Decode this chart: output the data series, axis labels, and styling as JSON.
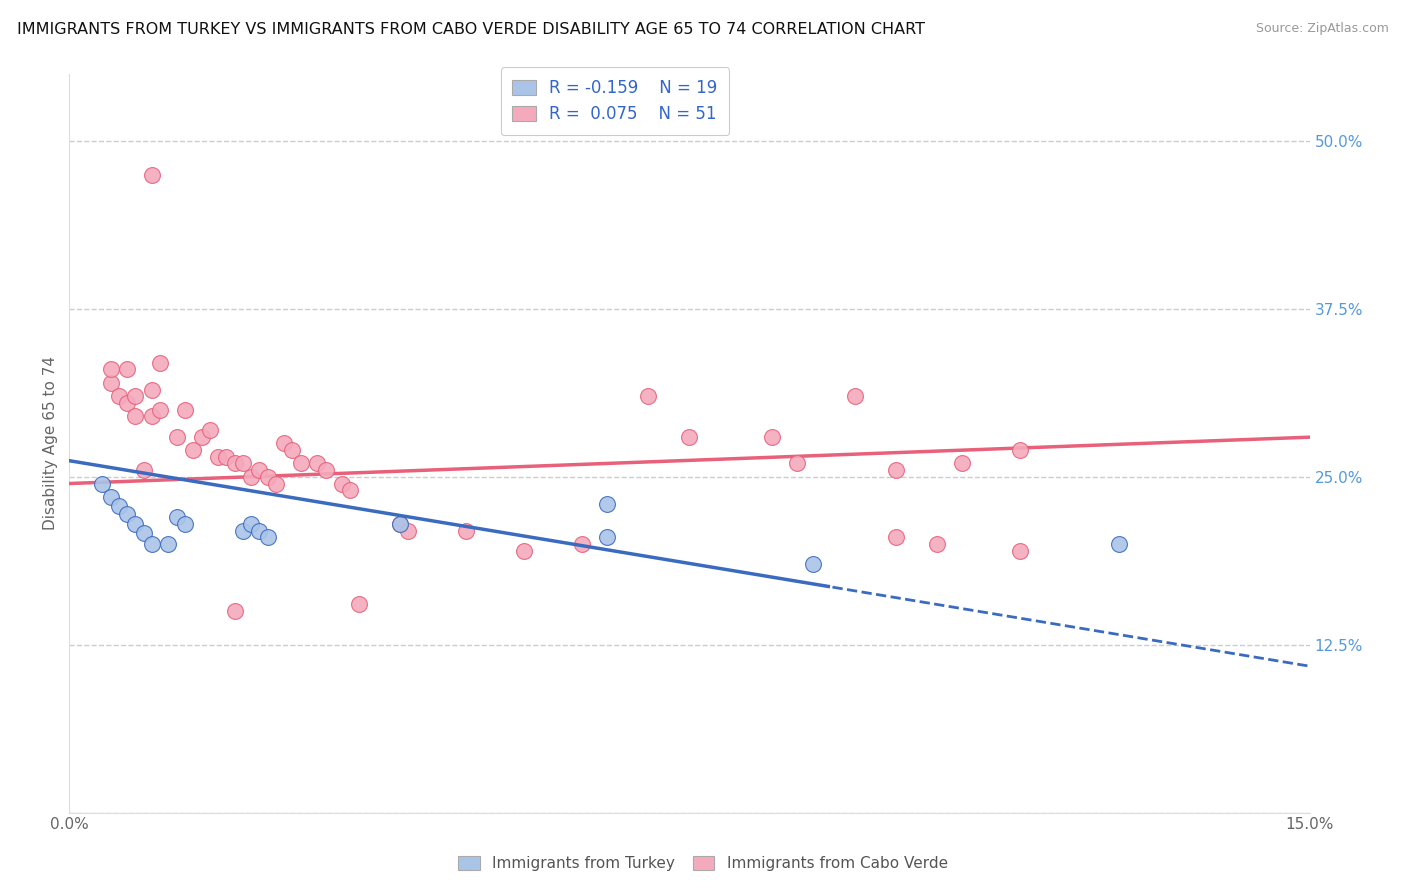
{
  "title": "IMMIGRANTS FROM TURKEY VS IMMIGRANTS FROM CABO VERDE DISABILITY AGE 65 TO 74 CORRELATION CHART",
  "source": "Source: ZipAtlas.com",
  "ylabel": "Disability Age 65 to 74",
  "xlim": [
    0.0,
    0.15
  ],
  "ylim": [
    0.0,
    0.55
  ],
  "xticks": [
    0.0,
    0.03,
    0.06,
    0.09,
    0.12,
    0.15
  ],
  "yticks_right": [
    0.0,
    0.125,
    0.25,
    0.375,
    0.5
  ],
  "color_blue": "#aac4e8",
  "color_pink": "#f4aabc",
  "color_blue_line": "#3a6bbf",
  "color_pink_line": "#e8607a",
  "blue_x": [
    0.004,
    0.005,
    0.006,
    0.007,
    0.008,
    0.009,
    0.01,
    0.012,
    0.013,
    0.014,
    0.021,
    0.022,
    0.023,
    0.024,
    0.04,
    0.065,
    0.065,
    0.09,
    0.127
  ],
  "blue_y": [
    0.245,
    0.235,
    0.228,
    0.222,
    0.215,
    0.208,
    0.2,
    0.2,
    0.22,
    0.215,
    0.21,
    0.215,
    0.21,
    0.205,
    0.215,
    0.23,
    0.205,
    0.185,
    0.2
  ],
  "pink_x": [
    0.005,
    0.005,
    0.006,
    0.007,
    0.007,
    0.008,
    0.008,
    0.009,
    0.01,
    0.01,
    0.011,
    0.011,
    0.013,
    0.014,
    0.015,
    0.016,
    0.017,
    0.018,
    0.019,
    0.02,
    0.021,
    0.022,
    0.023,
    0.024,
    0.025,
    0.026,
    0.027,
    0.028,
    0.03,
    0.031,
    0.033,
    0.034,
    0.04,
    0.041,
    0.048,
    0.055,
    0.062,
    0.07,
    0.075,
    0.085,
    0.088,
    0.095,
    0.1,
    0.108,
    0.115,
    0.1,
    0.105,
    0.115,
    0.035,
    0.02,
    0.01
  ],
  "pink_y": [
    0.32,
    0.33,
    0.31,
    0.305,
    0.33,
    0.295,
    0.31,
    0.255,
    0.295,
    0.315,
    0.3,
    0.335,
    0.28,
    0.3,
    0.27,
    0.28,
    0.285,
    0.265,
    0.265,
    0.26,
    0.26,
    0.25,
    0.255,
    0.25,
    0.245,
    0.275,
    0.27,
    0.26,
    0.26,
    0.255,
    0.245,
    0.24,
    0.215,
    0.21,
    0.21,
    0.195,
    0.2,
    0.31,
    0.28,
    0.28,
    0.26,
    0.31,
    0.255,
    0.26,
    0.27,
    0.205,
    0.2,
    0.195,
    0.155,
    0.15,
    0.475
  ]
}
